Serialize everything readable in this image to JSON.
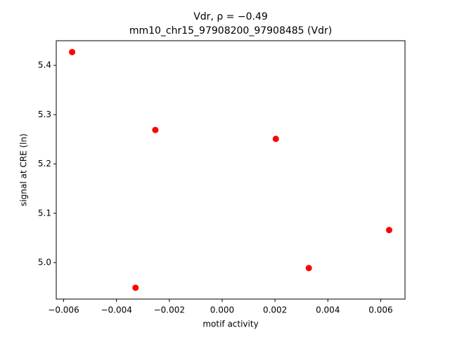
{
  "chart_data": {
    "type": "scatter",
    "title": "Vdr, ρ = −0.49",
    "subtitle": "mm10_chr15_97908200_97908485 (Vdr)",
    "x_label": "motif activity",
    "y_label": "signal at CRE (ln)",
    "color": "#ff0000",
    "x": [
      -0.00568,
      -0.00328,
      -0.00253,
      0.00203,
      0.00328,
      0.00632
    ],
    "values": [
      5.427,
      4.949,
      5.269,
      5.251,
      4.989,
      5.066
    ],
    "xlim": [
      -0.00628,
      0.00692
    ],
    "ylim": [
      4.926,
      5.45
    ],
    "xticks": [
      {
        "value": -0.006,
        "label": "−0.006"
      },
      {
        "value": -0.004,
        "label": "−0.004"
      },
      {
        "value": -0.002,
        "label": "−0.002"
      },
      {
        "value": 0,
        "label": "0.000"
      },
      {
        "value": 0.002,
        "label": "0.002"
      },
      {
        "value": 0.004,
        "label": "0.004"
      },
      {
        "value": 0.006,
        "label": "0.006"
      }
    ],
    "yticks": [
      {
        "value": 5,
        "label": "5.0"
      },
      5.1,
      5.2,
      5.3,
      5.4
    ]
  }
}
